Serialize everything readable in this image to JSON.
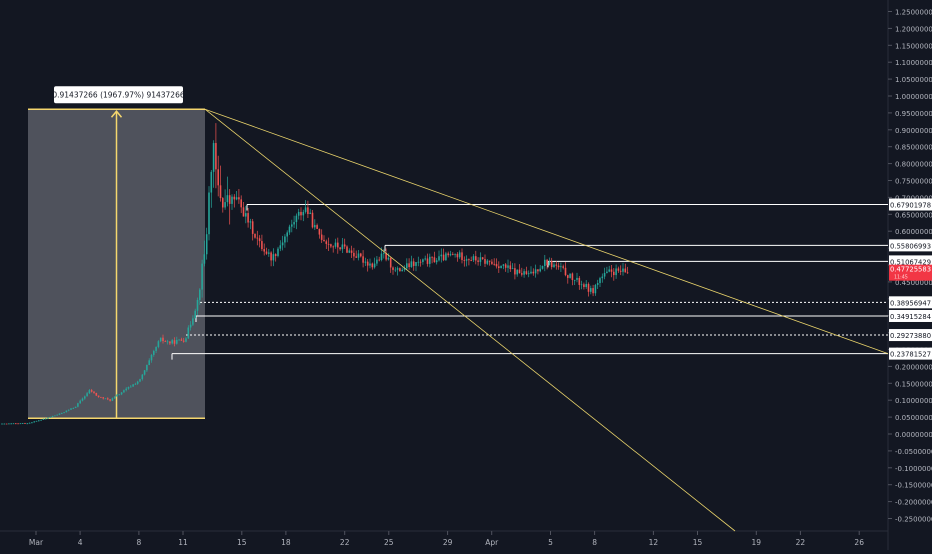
{
  "chart_data": {
    "type": "candlestick",
    "x_ticks": [
      "Mar",
      "4",
      "8",
      "11",
      "15",
      "18",
      "22",
      "25",
      "29",
      "Apr",
      "5",
      "8",
      "12",
      "15",
      "19",
      "22",
      "26"
    ],
    "y_ticks": [
      "1.25000000",
      "1.20000000",
      "1.15000000",
      "1.10000000",
      "1.05000000",
      "1.00000000",
      "0.95000000",
      "0.90000000",
      "0.85000000",
      "0.80000000",
      "0.75000000",
      "0.70000000",
      "0.65000000",
      "0.60000000",
      "0.55000000",
      "0.50000000",
      "0.45000000",
      "0.40000000",
      "0.35000000",
      "0.30000000",
      "0.25000000",
      "0.20000000",
      "0.15000000",
      "0.10000000",
      "0.05000000",
      "0.00000000",
      "-0.05000000",
      "-0.10000000",
      "-0.15000000",
      "-0.20000000",
      "-0.25000000"
    ],
    "ylim": [
      -0.27,
      1.27
    ],
    "last_price": "0.47725583",
    "last_price_sub": "11:45",
    "measure": {
      "label": "0.91437266 (1967.97%) 91437266",
      "low": 0.0465,
      "high": 0.9609
    },
    "levels": [
      {
        "label": "0.67901978",
        "value": 0.67901978,
        "style": "solid"
      },
      {
        "label": "0.55806993",
        "value": 0.55806993,
        "style": "solid"
      },
      {
        "label": "0.51067429",
        "value": 0.51067429,
        "style": "solid"
      },
      {
        "label": "0.38956947",
        "value": 0.38956947,
        "style": "dotted"
      },
      {
        "label": "0.34915284",
        "value": 0.34915284,
        "style": "solid"
      },
      {
        "label": "0.29273880",
        "value": 0.2927388,
        "style": "dotted"
      },
      {
        "label": "0.23781527",
        "value": 0.23781527,
        "style": "solid"
      }
    ],
    "trendlines": [
      {
        "from_price": 0.9609,
        "to_price": 0.2378
      },
      {
        "from_price": 0.9609,
        "to_price": -0.27
      }
    ],
    "colors": {
      "up": "#26a69a",
      "down": "#ef5350",
      "level": "#ffffff",
      "trend": "#e9d36b",
      "measure": "#f5d76e",
      "measure_fill": "#5b5d66",
      "label_bg": "#ffffff",
      "label_text": "#131722",
      "last_bg": "#f23645",
      "axis_text": "#b2b5be"
    }
  }
}
